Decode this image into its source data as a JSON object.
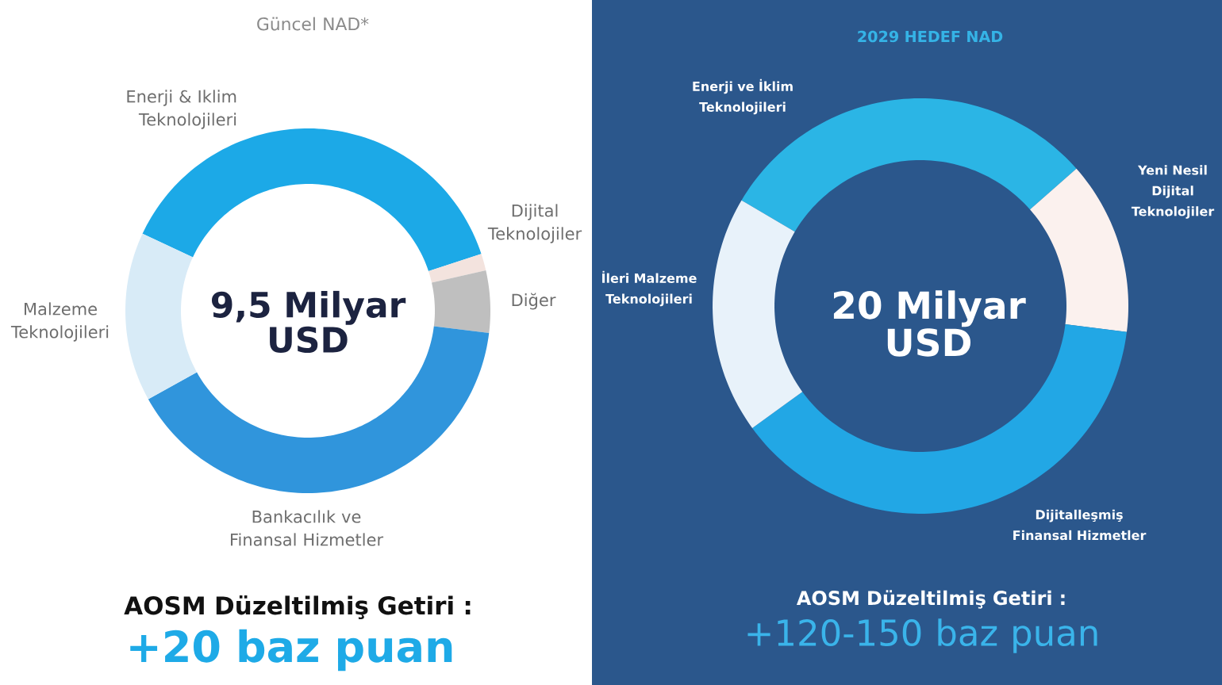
{
  "chart_data": [
    {
      "type": "donut",
      "title": "Güncel NAD*",
      "categories": [
        "Enerji & Iklim Teknolojileri",
        "Dijital Teknolojiler",
        "Diğer",
        "Bankacılık ve Finansal Hizmetler",
        "Malzeme Teknolojileri"
      ],
      "values": [
        38,
        1.5,
        5.5,
        40,
        15
      ],
      "colors": [
        "#1ca9e7",
        "#f3e3de",
        "#bfbfbf",
        "#3095dc",
        "#d8ebf7"
      ],
      "annotations": [
        "9,5 Milyar USD",
        "AOSM Düzeltilmiş Getiri :",
        "+20 baz puan"
      ]
    },
    {
      "type": "donut",
      "title": "2029 HEDEF NAD",
      "categories": [
        "Enerji ve İklim Teknolojileri",
        "Yeni Nesil Dijital Teknolojiler",
        "Dijitalleşmiş Finansal Hizmetler",
        "İleri Malzeme Teknolojileri"
      ],
      "values": [
        30,
        13.5,
        38,
        18.5
      ],
      "colors": [
        "#2bb5e5",
        "#fbf1ee",
        "#22a7e5",
        "#e8f2fa"
      ],
      "annotations": [
        "20 Milyar USD",
        "AOSM Düzeltilmiş Getiri :",
        "+120-150 baz puan"
      ]
    }
  ]
}
